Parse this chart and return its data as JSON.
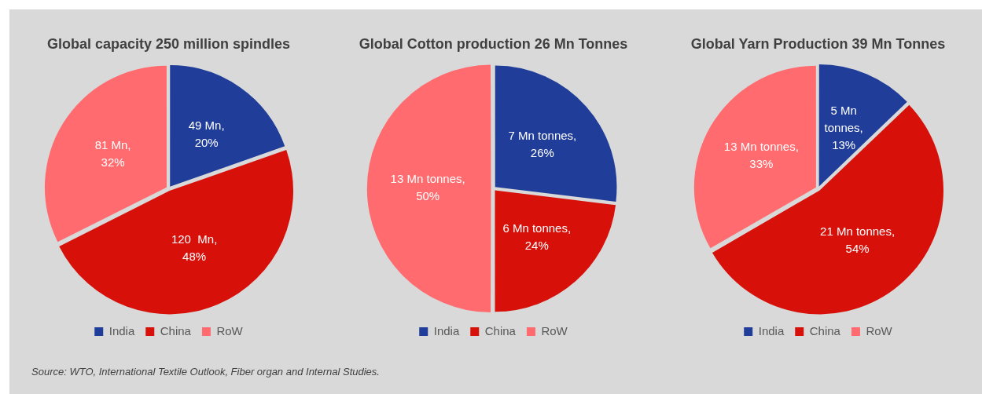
{
  "chart_data": [
    {
      "type": "pie",
      "title": "Global capacity 250 million spindles",
      "categories": [
        "India",
        "China",
        "RoW"
      ],
      "values": [
        49,
        120,
        81
      ],
      "colors": [
        "#1f3d99",
        "#d7100a",
        "#ff6b6e"
      ],
      "value_labels": [
        "49 Mn,\n20%",
        "120  Mn,\n48%",
        "81 Mn,\n32%"
      ],
      "legend": "bottom",
      "annotations": [
        "Source: WTO, International Textile Outlook, Fiber organ and Internal Studies."
      ]
    },
    {
      "type": "pie",
      "title": "Global Cotton production 26 Mn Tonnes",
      "categories": [
        "India",
        "China",
        "RoW"
      ],
      "values": [
        7,
        6,
        13
      ],
      "colors": [
        "#1f3d99",
        "#d7100a",
        "#ff6b6e"
      ],
      "value_labels": [
        "7 Mn tonnes,\n26%",
        "6 Mn tonnes,\n24%",
        "13 Mn tonnes,\n50%"
      ],
      "legend": "bottom"
    },
    {
      "type": "pie",
      "title": "Global Yarn Production 39 Mn Tonnes",
      "categories": [
        "India",
        "China",
        "RoW"
      ],
      "values": [
        5,
        21,
        13
      ],
      "colors": [
        "#1f3d99",
        "#d7100a",
        "#ff6b6e"
      ],
      "value_labels": [
        "5 Mn\ntonnes,\n13%",
        "21 Mn tonnes,\n54%",
        "13 Mn tonnes,\n33%"
      ],
      "legend": "bottom"
    }
  ]
}
